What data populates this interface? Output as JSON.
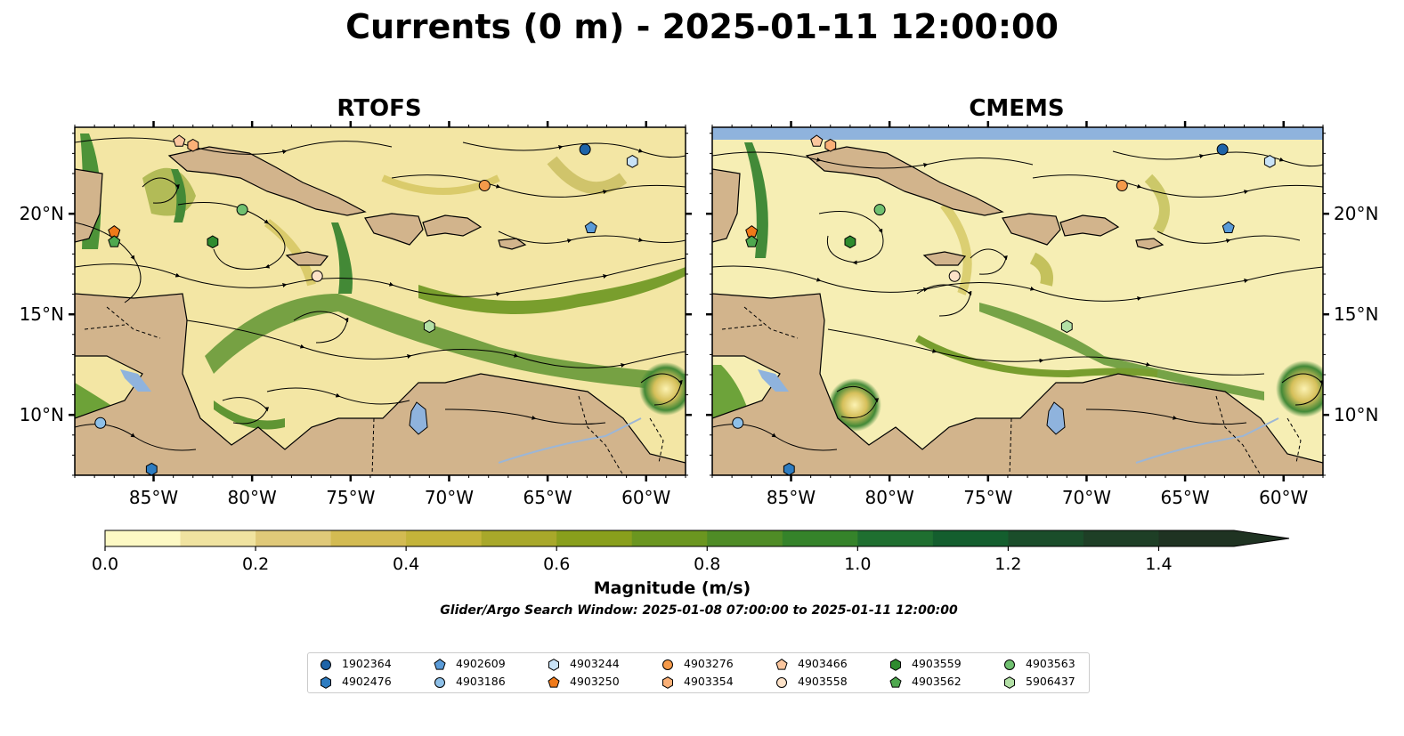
{
  "title": "Currents (0 m) - 2025-01-11 12:00:00",
  "panels": [
    {
      "name": "RTOFS"
    },
    {
      "name": "CMEMS"
    }
  ],
  "axes": {
    "lon_ticks": [
      "85°W",
      "80°W",
      "75°W",
      "70°W",
      "65°W",
      "60°W"
    ],
    "lat_ticks": [
      "20°N",
      "15°N",
      "10°N"
    ],
    "lon_range": [
      -89,
      -58
    ],
    "lat_range": [
      7,
      24.3
    ]
  },
  "colorbar": {
    "label": "Magnitude (m/s)",
    "ticks": [
      "0.0",
      "0.2",
      "0.4",
      "0.6",
      "0.8",
      "1.0",
      "1.2",
      "1.4"
    ],
    "range": [
      0,
      1.5
    ],
    "extend": "max",
    "colors": [
      "#fdf9c4",
      "#f0e3a0",
      "#e0c979",
      "#d3bb52",
      "#c4b43a",
      "#a8a82a",
      "#899f1c",
      "#6b9620",
      "#4f8c26",
      "#35832a",
      "#1f6f30",
      "#145e2e",
      "#1a4d2a",
      "#1e3f26",
      "#1f3322"
    ]
  },
  "colors": {
    "land": "#d2b48c",
    "ocean_nodata": "#8fb3dd",
    "lake": "#8fb3dd"
  },
  "search_window": "Glider/Argo Search Window: 2025-01-08 07:00:00 to 2025-01-11 12:00:00",
  "legend": [
    {
      "id": "1902364",
      "marker": "circle",
      "color": "#1f64a8"
    },
    {
      "id": "4902476",
      "marker": "hexagon",
      "color": "#2e7cc0"
    },
    {
      "id": "4902609",
      "marker": "pentagon",
      "color": "#5a9bd8"
    },
    {
      "id": "4903186",
      "marker": "circle",
      "color": "#8ec0e8"
    },
    {
      "id": "4903244",
      "marker": "hexagon",
      "color": "#c8e2f6"
    },
    {
      "id": "4903250",
      "marker": "pentagon",
      "color": "#f07a1a"
    },
    {
      "id": "4903276",
      "marker": "circle",
      "color": "#f59a4a"
    },
    {
      "id": "4903354",
      "marker": "hexagon",
      "color": "#fab077"
    },
    {
      "id": "4903466",
      "marker": "pentagon",
      "color": "#fbc69e"
    },
    {
      "id": "4903558",
      "marker": "circle",
      "color": "#fde2c8"
    },
    {
      "id": "4903559",
      "marker": "hexagon",
      "color": "#2e8b2e"
    },
    {
      "id": "4903562",
      "marker": "pentagon",
      "color": "#4fa84f"
    },
    {
      "id": "4903563",
      "marker": "circle",
      "color": "#70c070"
    },
    {
      "id": "5906437",
      "marker": "hexagon",
      "color": "#b3e0a6"
    }
  ],
  "floats": {
    "RTOFS": [
      {
        "id": "1902364",
        "lon": -63.1,
        "lat": 23.2
      },
      {
        "id": "4902476",
        "lon": -85.1,
        "lat": 7.3
      },
      {
        "id": "4902609",
        "lon": -62.8,
        "lat": 19.3
      },
      {
        "id": "4903186",
        "lon": -87.7,
        "lat": 9.6
      },
      {
        "id": "4903244",
        "lon": -60.7,
        "lat": 22.6
      },
      {
        "id": "4903250",
        "lon": -87.0,
        "lat": 19.1
      },
      {
        "id": "4903276",
        "lon": -68.2,
        "lat": 21.4
      },
      {
        "id": "4903354",
        "lon": -83.0,
        "lat": 23.4
      },
      {
        "id": "4903466",
        "lon": -83.7,
        "lat": 23.6
      },
      {
        "id": "4903558",
        "lon": -76.7,
        "lat": 16.9
      },
      {
        "id": "4903559",
        "lon": -82.0,
        "lat": 18.6
      },
      {
        "id": "4903562",
        "lon": -87.0,
        "lat": 18.6
      },
      {
        "id": "4903563",
        "lon": -80.5,
        "lat": 20.2
      },
      {
        "id": "5906437",
        "lon": -71.0,
        "lat": 14.4
      }
    ],
    "CMEMS": [
      {
        "id": "1902364",
        "lon": -63.1,
        "lat": 23.2
      },
      {
        "id": "4902476",
        "lon": -85.1,
        "lat": 7.3
      },
      {
        "id": "4902609",
        "lon": -62.8,
        "lat": 19.3
      },
      {
        "id": "4903186",
        "lon": -87.7,
        "lat": 9.6
      },
      {
        "id": "4903244",
        "lon": -60.7,
        "lat": 22.6
      },
      {
        "id": "4903250",
        "lon": -87.0,
        "lat": 19.1
      },
      {
        "id": "4903276",
        "lon": -68.2,
        "lat": 21.4
      },
      {
        "id": "4903354",
        "lon": -83.0,
        "lat": 23.4
      },
      {
        "id": "4903466",
        "lon": -83.7,
        "lat": 23.6
      },
      {
        "id": "4903558",
        "lon": -76.7,
        "lat": 16.9
      },
      {
        "id": "4903559",
        "lon": -82.0,
        "lat": 18.6
      },
      {
        "id": "4903562",
        "lon": -87.0,
        "lat": 18.6
      },
      {
        "id": "4903563",
        "lon": -80.5,
        "lat": 20.2
      },
      {
        "id": "5906437",
        "lon": -71.0,
        "lat": 14.4
      }
    ]
  }
}
